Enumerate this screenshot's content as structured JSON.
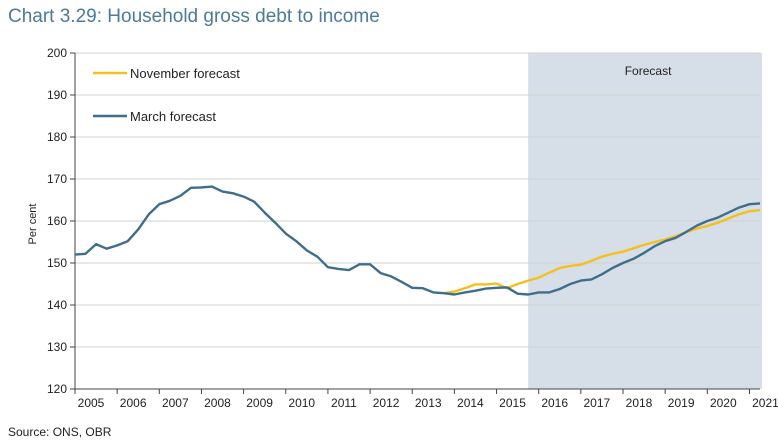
{
  "title": "Chart 3.29: Household gross debt to income",
  "source": "Source: ONS, OBR",
  "chart_data": {
    "type": "line",
    "ylabel": "Per cent",
    "ylim": [
      120,
      200
    ],
    "yticks": [
      120,
      130,
      140,
      150,
      160,
      170,
      180,
      190,
      200
    ],
    "xlim": [
      2005,
      2021.25
    ],
    "xticks": [
      "2005",
      "2006",
      "2007",
      "2008",
      "2009",
      "2010",
      "2011",
      "2012",
      "2013",
      "2014",
      "2015",
      "2016",
      "2017",
      "2018",
      "2019",
      "2020",
      "2021"
    ],
    "legend_position": "top-left",
    "forecast_region": {
      "label": "Forecast",
      "start": 2015.75,
      "end": 2021.25,
      "color": "#d6dfe8"
    },
    "series": [
      {
        "name": "November forecast",
        "color": "#f5bf1d",
        "points": [
          [
            2013.75,
            142.8
          ],
          [
            2014.0,
            143.2
          ],
          [
            2014.25,
            144.0
          ],
          [
            2014.5,
            144.9
          ],
          [
            2014.75,
            144.9
          ],
          [
            2015.0,
            145.1
          ],
          [
            2015.25,
            144.0
          ],
          [
            2015.5,
            145.0
          ],
          [
            2015.75,
            145.8
          ],
          [
            2016.0,
            146.5
          ],
          [
            2016.25,
            147.7
          ],
          [
            2016.5,
            148.8
          ],
          [
            2016.75,
            149.3
          ],
          [
            2017.0,
            149.6
          ],
          [
            2017.25,
            150.5
          ],
          [
            2017.5,
            151.5
          ],
          [
            2017.75,
            152.2
          ],
          [
            2018.0,
            152.7
          ],
          [
            2018.25,
            153.5
          ],
          [
            2018.5,
            154.3
          ],
          [
            2018.75,
            155.0
          ],
          [
            2019.0,
            155.6
          ],
          [
            2019.25,
            156.4
          ],
          [
            2019.5,
            157.3
          ],
          [
            2019.75,
            158.2
          ],
          [
            2020.0,
            158.8
          ],
          [
            2020.25,
            159.6
          ],
          [
            2020.5,
            160.6
          ],
          [
            2020.75,
            161.6
          ],
          [
            2021.0,
            162.3
          ],
          [
            2021.25,
            162.6
          ]
        ]
      },
      {
        "name": "March forecast",
        "color": "#3f6e8c",
        "points": [
          [
            2005.0,
            152.0
          ],
          [
            2005.25,
            152.2
          ],
          [
            2005.5,
            154.5
          ],
          [
            2005.75,
            153.4
          ],
          [
            2006.0,
            154.2
          ],
          [
            2006.25,
            155.2
          ],
          [
            2006.5,
            158.0
          ],
          [
            2006.75,
            161.6
          ],
          [
            2007.0,
            164.0
          ],
          [
            2007.25,
            164.8
          ],
          [
            2007.5,
            166.0
          ],
          [
            2007.75,
            167.9
          ],
          [
            2008.0,
            168.0
          ],
          [
            2008.25,
            168.2
          ],
          [
            2008.5,
            167.0
          ],
          [
            2008.75,
            166.6
          ],
          [
            2009.0,
            165.8
          ],
          [
            2009.25,
            164.6
          ],
          [
            2009.5,
            162.0
          ],
          [
            2009.75,
            159.6
          ],
          [
            2010.0,
            157.0
          ],
          [
            2010.25,
            155.2
          ],
          [
            2010.5,
            153.0
          ],
          [
            2010.75,
            151.5
          ],
          [
            2011.0,
            149.0
          ],
          [
            2011.25,
            148.6
          ],
          [
            2011.5,
            148.3
          ],
          [
            2011.75,
            149.7
          ],
          [
            2012.0,
            149.7
          ],
          [
            2012.25,
            147.6
          ],
          [
            2012.5,
            146.8
          ],
          [
            2012.75,
            145.5
          ],
          [
            2013.0,
            144.1
          ],
          [
            2013.25,
            144.0
          ],
          [
            2013.5,
            143.0
          ],
          [
            2013.75,
            142.8
          ],
          [
            2014.0,
            142.5
          ],
          [
            2014.25,
            143.0
          ],
          [
            2014.5,
            143.4
          ],
          [
            2014.75,
            143.9
          ],
          [
            2015.0,
            144.1
          ],
          [
            2015.25,
            144.2
          ],
          [
            2015.5,
            142.7
          ],
          [
            2015.75,
            142.5
          ],
          [
            2016.0,
            143.0
          ],
          [
            2016.25,
            143.0
          ],
          [
            2016.5,
            143.8
          ],
          [
            2016.75,
            145.0
          ],
          [
            2017.0,
            145.8
          ],
          [
            2017.25,
            146.1
          ],
          [
            2017.5,
            147.3
          ],
          [
            2017.75,
            148.8
          ],
          [
            2018.0,
            150.0
          ],
          [
            2018.25,
            151.0
          ],
          [
            2018.5,
            152.4
          ],
          [
            2018.75,
            154.0
          ],
          [
            2019.0,
            155.2
          ],
          [
            2019.25,
            156.0
          ],
          [
            2019.5,
            157.4
          ],
          [
            2019.75,
            158.9
          ],
          [
            2020.0,
            160.0
          ],
          [
            2020.25,
            160.8
          ],
          [
            2020.5,
            162.0
          ],
          [
            2020.75,
            163.2
          ],
          [
            2021.0,
            164.0
          ],
          [
            2021.25,
            164.2
          ]
        ]
      }
    ]
  }
}
